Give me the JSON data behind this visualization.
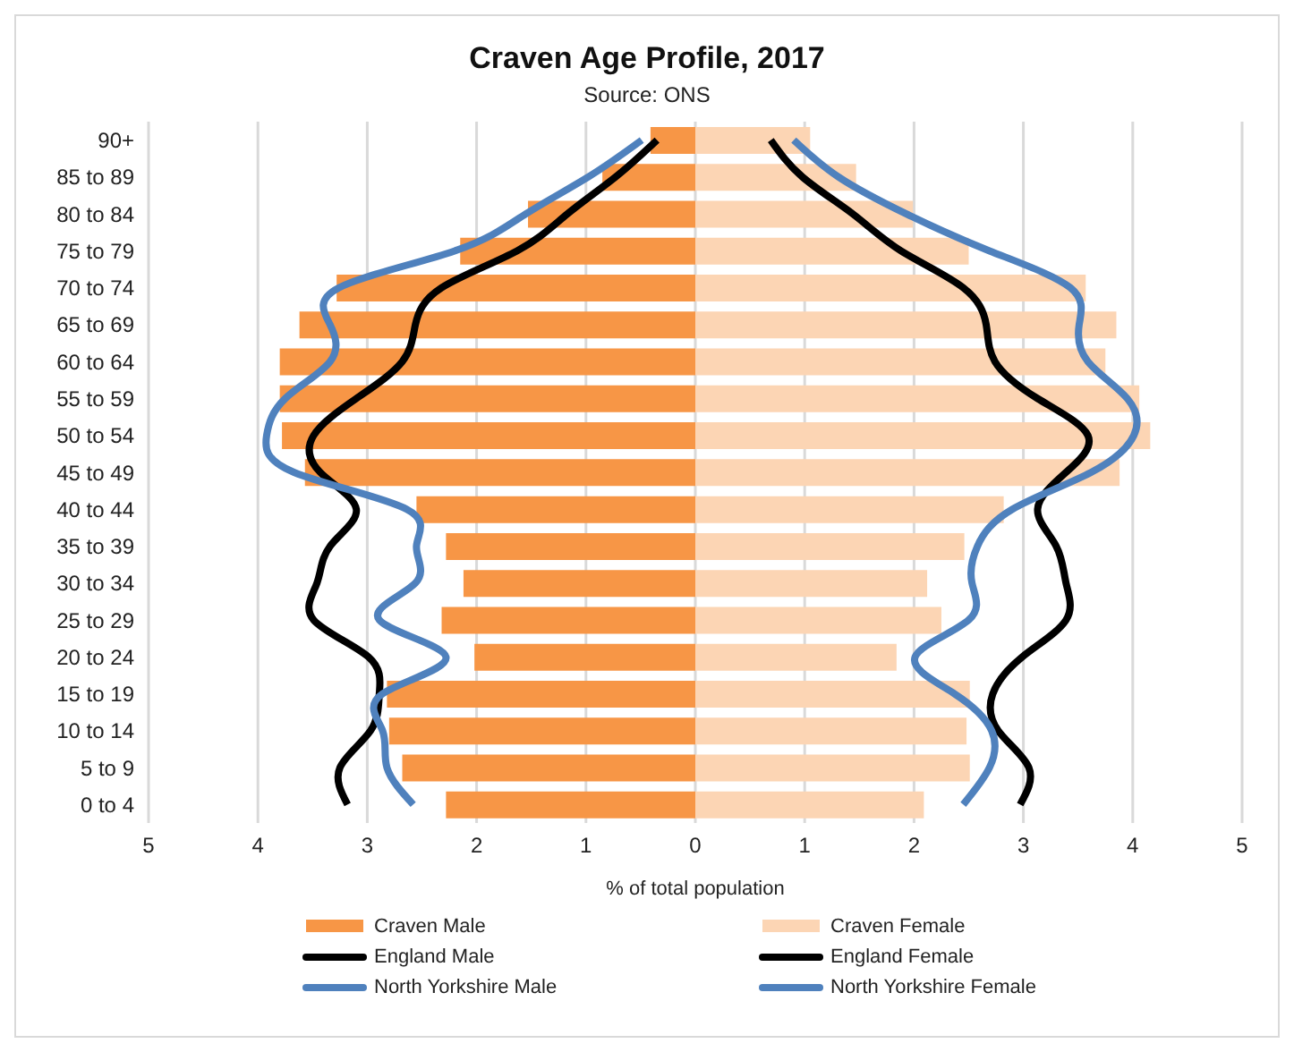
{
  "chart_data": {
    "type": "bar",
    "orientation": "horizontal",
    "stacked": true,
    "title": "Craven Age Profile, 2017",
    "subtitle": "Source: ONS",
    "xlabel": "% of total population",
    "categories": [
      "90+",
      "85 to 89",
      "80 to 84",
      "75 to 79",
      "70 to 74",
      "65 to 69",
      "60 to 64",
      "55 to 59",
      "50 to 54",
      "45 to 49",
      "40 to 44",
      "35 to 39",
      "30 to 34",
      "25 to 29",
      "20 to 24",
      "15 to 19",
      "10 to 14",
      "5 to 9",
      "0 to 4"
    ],
    "series": [
      {
        "name": "Craven Male",
        "color": "#f79646",
        "values": [
          -0.41,
          -0.85,
          -1.53,
          -2.15,
          -3.28,
          -3.62,
          -3.8,
          -3.8,
          -3.78,
          -3.57,
          -2.55,
          -2.28,
          -2.12,
          -2.32,
          -2.02,
          -2.82,
          -2.8,
          -2.68,
          -2.28
        ]
      },
      {
        "name": "Craven Female",
        "color": "#fcd5b4",
        "values": [
          1.05,
          1.47,
          1.99,
          2.5,
          3.57,
          3.85,
          3.75,
          4.06,
          4.16,
          3.88,
          2.82,
          2.46,
          2.12,
          2.25,
          1.84,
          2.51,
          2.48,
          2.51,
          2.09
        ]
      },
      {
        "name": "England Male",
        "type": "line",
        "color": "#000000",
        "values": [
          -0.35,
          -0.73,
          -1.17,
          -1.63,
          -2.32,
          -2.56,
          -2.68,
          -3.1,
          -3.49,
          -3.43,
          -3.1,
          -3.34,
          -3.46,
          -3.49,
          -2.99,
          -2.89,
          -2.97,
          -3.25,
          -3.18
        ]
      },
      {
        "name": "England Female",
        "type": "line",
        "color": "#000000",
        "values": [
          0.69,
          0.98,
          1.44,
          1.88,
          2.45,
          2.66,
          2.74,
          3.13,
          3.59,
          3.39,
          3.13,
          3.3,
          3.39,
          3.39,
          2.99,
          2.72,
          2.77,
          3.05,
          2.97
        ]
      },
      {
        "name": "North Yorkshire Male",
        "type": "line",
        "color": "#4f81bd",
        "values": [
          -0.49,
          -0.98,
          -1.55,
          -2.2,
          -3.26,
          -3.34,
          -3.34,
          -3.75,
          -3.92,
          -3.67,
          -2.64,
          -2.55,
          -2.56,
          -2.89,
          -2.28,
          -2.86,
          -2.86,
          -2.82,
          -2.58
        ]
      },
      {
        "name": "North Yorkshire Female",
        "type": "line",
        "color": "#4f81bd",
        "values": [
          0.9,
          1.31,
          1.93,
          2.69,
          3.43,
          3.51,
          3.59,
          3.95,
          4.01,
          3.62,
          2.9,
          2.58,
          2.53,
          2.5,
          2.01,
          2.37,
          2.71,
          2.69,
          2.45
        ]
      }
    ],
    "xlim": [
      -5,
      5
    ],
    "xticks": [
      {
        "value": -5,
        "label": "5"
      },
      {
        "value": -4,
        "label": "4"
      },
      {
        "value": -3,
        "label": "3"
      },
      {
        "value": -2,
        "label": "2"
      },
      {
        "value": -1,
        "label": "1"
      },
      0,
      1,
      2,
      3,
      4,
      5
    ],
    "grid": "x",
    "legend": "bottom",
    "marker": "none",
    "line_style": "solid"
  }
}
